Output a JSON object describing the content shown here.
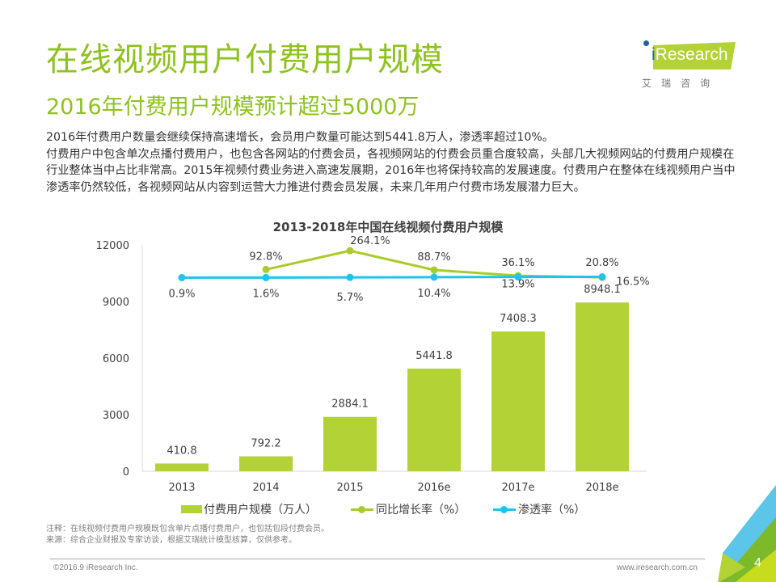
{
  "header": {
    "title": "在线视频用户付费用户规模",
    "subtitle": "2016年付费用户规模预计超过5000万"
  },
  "logo": {
    "brand": "Research",
    "brand_prefix_icon": "i-dot-icon",
    "cn_name": "艾瑞咨询",
    "color": "#b2d235"
  },
  "body": {
    "paragraphs": [
      "2016年付费用户数量会继续保持高速增长，会员用户数量可能达到5441.8万人，渗透率超过10%。",
      "付费用户中包含单次点播付费用户，也包含各网站的付费会员，各视频网站的付费会员重合度较高，头部几大视频网站的付费用户规模在行业整体当中占比非常高。2015年视频付费业务进入高速发展期，2016年也将保持较高的发展速度。付费用户在整体在线视频用户当中渗透率仍然较低，各视频网站从内容到运营大力推进付费会员发展，未来几年用户付费市场发展潜力巨大。"
    ]
  },
  "chart_data": {
    "type": "bar",
    "title": "2013-2018年中国在线视频付费用户规模",
    "categories": [
      "2013",
      "2014",
      "2015",
      "2016e",
      "2017e",
      "2018e"
    ],
    "xlabel": "",
    "ylabel": "",
    "ylim": [
      0,
      12000
    ],
    "yticks": [
      0,
      3000,
      6000,
      9000,
      12000
    ],
    "grid": false,
    "legend_position": "bottom",
    "series": [
      {
        "name": "付费用户规模（万人）",
        "type": "bar",
        "color": "#b2d235",
        "values": [
          410.8,
          792.2,
          2884.1,
          5441.8,
          7408.3,
          8948.1
        ],
        "labels": [
          "410.8",
          "792.2",
          "2884.1",
          "5441.8",
          "7408.3",
          "8948.1"
        ]
      },
      {
        "name": "同比增长率（%）",
        "type": "line",
        "axis": "secondary",
        "color": "#a9cb2b",
        "values": [
          null,
          92.8,
          264.1,
          88.7,
          36.1,
          20.8
        ],
        "labels": [
          null,
          "92.8%",
          "264.1%",
          "88.7%",
          "36.1%",
          "20.8%"
        ]
      },
      {
        "name": "渗透率（%）",
        "type": "line",
        "axis": "secondary",
        "color": "#1fc3ef",
        "values": [
          0.9,
          1.6,
          5.7,
          10.4,
          13.9,
          16.5
        ],
        "labels": [
          "0.9%",
          "1.6%",
          "5.7%",
          "10.4%",
          "13.9%",
          "16.5%"
        ]
      }
    ]
  },
  "legend": {
    "items": [
      {
        "label": "付费用户规模（万人）",
        "icon": "bar-swatch-icon"
      },
      {
        "label": "同比增长率（%）",
        "icon": "line-marker-icon"
      },
      {
        "label": "渗透率（%）",
        "icon": "line-marker-icon"
      }
    ]
  },
  "notes": {
    "note": "注释：在线视频付费用户规模既包含单片点播付费用户，也包括包段付费会员。",
    "source": "来源：综合企业财报及专家访谈，根据艾瑞统计模型核算，仅供参考。"
  },
  "footer": {
    "copyright": "©2016.9 iResearch Inc.",
    "website": "www.iresearch.com.cn",
    "page_number": "4"
  },
  "colors": {
    "accent_green": "#8ec21f",
    "bar_green": "#b2d235",
    "line_blue": "#1fc3ef",
    "corner_blue": "#5bc5ea"
  }
}
